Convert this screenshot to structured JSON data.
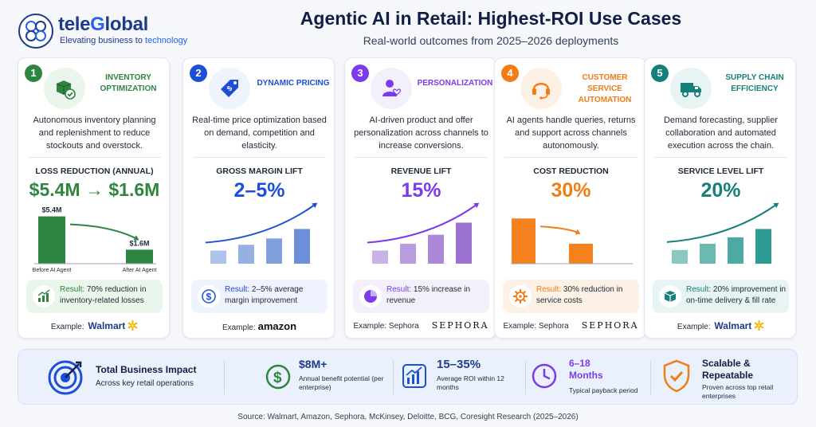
{
  "brand": {
    "name_part1": "tele",
    "name_part2": "G",
    "name_part3": "lobal",
    "tagline_part1": "Elevating business to ",
    "tagline_part2": "technology"
  },
  "header": {
    "title": "Agentic AI in Retail: Highest-ROI Use Cases",
    "subtitle": "Real-world outcomes from 2025–2026 deployments"
  },
  "cards": [
    {
      "number": "1",
      "title": "INVENTORY OPTIMIZATION",
      "icon": "box-check-icon",
      "description": "Autonomous inventory planning and replenishment to reduce stockouts and overstock.",
      "metric_label": "LOSS REDUCTION (ANNUAL)",
      "metric_value": "$5.4M → $1.6M",
      "result_prefix": "Result:",
      "result_text": "70% reduction in inventory-related losses",
      "example_prefix": "Example:",
      "example_brand": "Walmart",
      "accent": "#2e8540",
      "tint": "#eaf5ec"
    },
    {
      "number": "2",
      "title": "DYNAMIC PRICING",
      "icon": "price-tag-icon",
      "description": "Real-time price optimization based on demand, competition and elasticity.",
      "metric_label": "GROSS MARGIN LIFT",
      "metric_value": "2–5%",
      "result_prefix": "Result:",
      "result_text": "2–5% average margin improvement",
      "example_prefix": "Example:",
      "example_brand": "amazon",
      "accent": "#1d4ed8",
      "tint": "#eef3fd"
    },
    {
      "number": "3",
      "title": "PERSONALIZATION",
      "icon": "user-heart-icon",
      "description": "AI-driven product and offer personalization across channels to increase conversions.",
      "metric_label": "REVENUE LIFT",
      "metric_value": "15%",
      "result_prefix": "Result:",
      "result_text": "15% increase in revenue",
      "example_prefix": "Example: Sephora",
      "example_brand": "SEPHORA",
      "accent": "#7c3aed",
      "tint": "#f3f0fc"
    },
    {
      "number": "4",
      "title": "CUSTOMER SERVICE AUTOMATION",
      "icon": "headset-icon",
      "description": "AI agents handle queries, returns and support across channels autonomously.",
      "metric_label": "COST REDUCTION",
      "metric_value": "30%",
      "result_prefix": "Result:",
      "result_text": "30% reduction in service costs",
      "example_prefix": "Example: Sephora",
      "example_brand": "SEPHORA",
      "accent": "#f07d16",
      "tint": "#fdf1e6"
    },
    {
      "number": "5",
      "title": "SUPPLY CHAIN EFFICIENCY",
      "icon": "truck-icon",
      "description": "Demand forecasting, supplier collaboration and automated execution across the chain.",
      "metric_label": "SERVICE LEVEL LIFT",
      "metric_value": "20%",
      "result_prefix": "Result:",
      "result_text": "20% improvement in on-time delivery & fill rate",
      "example_prefix": "Example:",
      "example_brand": "Walmart",
      "accent": "#15807a",
      "tint": "#e8f4f3"
    }
  ],
  "chart_data": [
    {
      "type": "bar",
      "categories": [
        "Before AI Agent",
        "After AI Agent"
      ],
      "values": [
        5.4,
        1.6
      ],
      "data_labels": [
        "$5.4M",
        "$1.6M"
      ],
      "title": "LOSS REDUCTION (ANNUAL)",
      "ylim": [
        0,
        6
      ],
      "color": "#2e8540"
    },
    {
      "type": "bar",
      "categories": [
        "",
        "",
        "",
        ""
      ],
      "values": [
        0.25,
        0.36,
        0.48,
        0.66
      ],
      "title": "GROSS MARGIN LIFT",
      "ylim": [
        0,
        1
      ],
      "color": "#6b8fd8"
    },
    {
      "type": "bar",
      "categories": [
        "",
        "",
        "",
        ""
      ],
      "values": [
        0.25,
        0.38,
        0.55,
        0.78
      ],
      "title": "REVENUE LIFT",
      "ylim": [
        0,
        1
      ],
      "color": "#9b72d2"
    },
    {
      "type": "bar",
      "categories": [
        "",
        ""
      ],
      "values": [
        0.86,
        0.38
      ],
      "title": "COST REDUCTION",
      "ylim": [
        0,
        1
      ],
      "color": "#f5821f"
    },
    {
      "type": "bar",
      "categories": [
        "",
        "",
        "",
        ""
      ],
      "values": [
        0.26,
        0.38,
        0.5,
        0.66
      ],
      "title": "SERVICE LEVEL LIFT",
      "ylim": [
        0,
        1
      ],
      "color": "#2e9b92"
    }
  ],
  "summary": {
    "impact_title": "Total Business Impact",
    "impact_sub": "Across key retail operations",
    "benefit_value": "$8M+",
    "benefit_label": "Annual benefit potential (per enterprise)",
    "roi_value": "15–35%",
    "roi_label": "Average ROI within 12 months",
    "payback_value": "6–18 Months",
    "payback_label": "Typical payback period",
    "scalable_value": "Scalable & Repeatable",
    "scalable_label": "Proven across top retail enterprises"
  },
  "source": "Source: Walmart, Amazon, Sephora, McKinsey, Deloitte, BCG, Coresight Research (2025–2026)"
}
